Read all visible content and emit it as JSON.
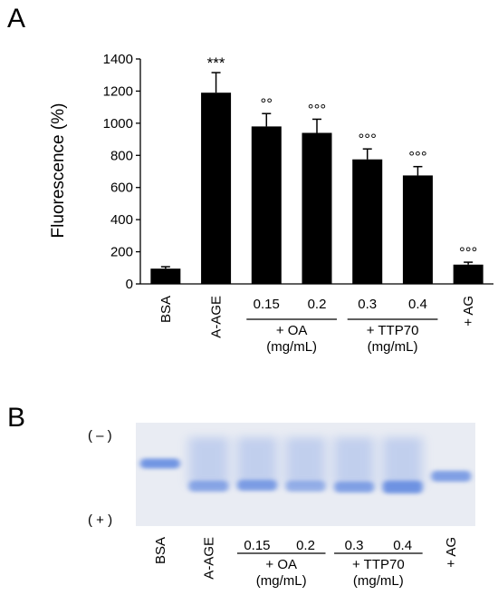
{
  "chart_data": [
    {
      "panel": "A",
      "type": "bar",
      "ylabel": "Fluorescence (%)",
      "ylim": [
        0,
        1400
      ],
      "yticks": [
        "0",
        "200",
        "400",
        "600",
        "800",
        "1000",
        "1200",
        "1400"
      ],
      "grid": false,
      "categories": [
        "BSA",
        "A-AGE",
        "0.15",
        "0.2",
        "0.3",
        "0.4",
        "+ AG"
      ],
      "values": [
        95,
        1190,
        980,
        940,
        775,
        675,
        120
      ],
      "errors": [
        12,
        125,
        80,
        85,
        65,
        55,
        15
      ],
      "significance": [
        "",
        "***",
        "°°",
        "°°°",
        "°°°",
        "°°°",
        "°°°"
      ],
      "groups": [
        {
          "label": "+ OA",
          "unit": "(mg/mL)",
          "members": [
            "0.15",
            "0.2"
          ]
        },
        {
          "label": "+ TTP70",
          "unit": "(mg/mL)",
          "members": [
            "0.3",
            "0.4"
          ]
        }
      ],
      "colors": {
        "bar": "#000000"
      }
    },
    {
      "panel": "B",
      "type": "gel",
      "polarity_top": "( – )",
      "polarity_bottom": "( + )",
      "lanes": [
        "BSA",
        "A-AGE",
        "0.15",
        "0.2",
        "0.3",
        "0.4",
        "+ AG"
      ],
      "groups": [
        {
          "label": "+ OA",
          "unit": "(mg/mL)",
          "members": [
            "0.15",
            "0.2"
          ]
        },
        {
          "label": "+ TTP70",
          "unit": "(mg/mL)",
          "members": [
            "0.3",
            "0.4"
          ]
        }
      ],
      "colors": {
        "background": "#e9ecf3",
        "band": "#5d86e0"
      }
    }
  ]
}
